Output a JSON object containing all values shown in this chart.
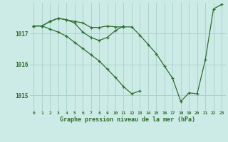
{
  "title": "Graphe pression niveau de la mer (hPa)",
  "bg_color": "#cceae6",
  "grid_color": "#aad4cc",
  "line_color": "#2d6e2d",
  "tick_color": "#2d6e2d",
  "hours": [
    0,
    1,
    2,
    3,
    4,
    5,
    6,
    7,
    8,
    9,
    10,
    11,
    12,
    13,
    14,
    15,
    16,
    17,
    18,
    19,
    20,
    21,
    22,
    23
  ],
  "series1": [
    1017.25,
    1017.25,
    1017.4,
    1017.5,
    1017.45,
    1017.4,
    1017.35,
    1017.2,
    1017.2,
    1017.25,
    1017.22,
    1017.22,
    1017.22,
    1016.95,
    1016.65,
    1016.35,
    1015.95,
    1015.55,
    1014.8,
    1015.08,
    1015.05,
    1016.15,
    1017.8,
    1017.95
  ],
  "series2": [
    1017.25,
    1017.25,
    1017.4,
    1017.5,
    1017.45,
    1017.35,
    1017.05,
    1016.88,
    1016.78,
    1016.88,
    1017.1,
    1017.25,
    null,
    null,
    null,
    null,
    null,
    null,
    null,
    null,
    null,
    null,
    null,
    null
  ],
  "series3": [
    1017.25,
    1017.25,
    1017.15,
    1017.05,
    1016.92,
    1016.72,
    1016.52,
    1016.32,
    1016.12,
    1015.85,
    1015.58,
    1015.28,
    1015.05,
    1015.15,
    null,
    null,
    null,
    null,
    null,
    null,
    null,
    null,
    null,
    null
  ],
  "ylim": [
    1014.5,
    1018.0
  ],
  "yticks": [
    1015,
    1016,
    1017
  ],
  "xticks": [
    0,
    1,
    2,
    3,
    4,
    5,
    6,
    7,
    8,
    9,
    10,
    11,
    12,
    13,
    14,
    15,
    16,
    17,
    18,
    19,
    20,
    21,
    22,
    23
  ]
}
